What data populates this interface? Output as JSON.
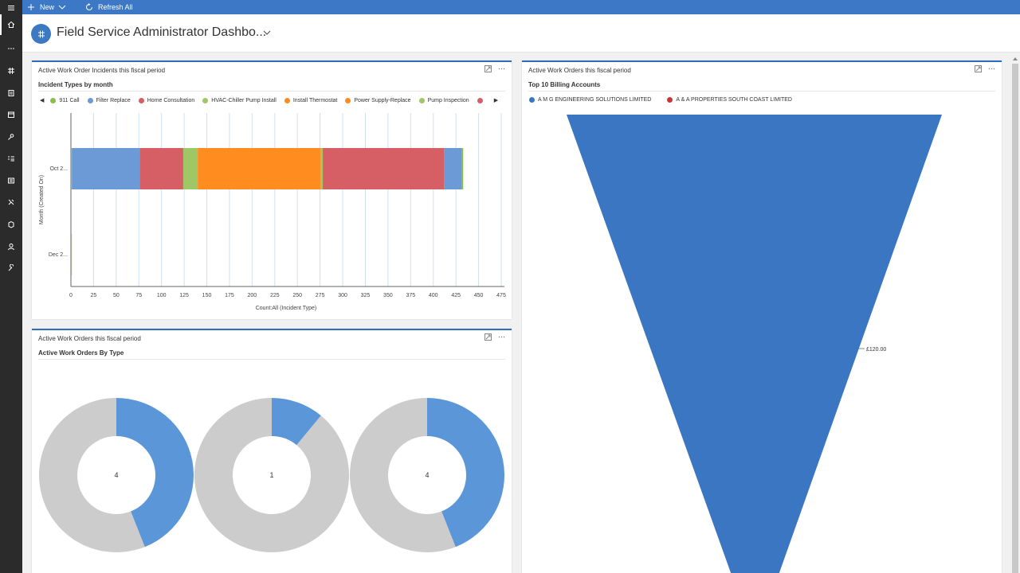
{
  "commandbar": {
    "new_label": "New",
    "refresh_label": "Refresh All"
  },
  "header": {
    "title": "Field Service Administrator Dashbo..."
  },
  "rail": {
    "icons": [
      "hamburger-icon",
      "home-icon",
      "more-icon",
      "dashboard-icon",
      "work-orders-icon",
      "calendar-icon",
      "resources-icon",
      "list-icon",
      "agreements-icon",
      "scheduling-icon",
      "inventory-icon",
      "customers-icon",
      "settings-icon"
    ]
  },
  "panel_incidents": {
    "title": "Active Work Order Incidents this fiscal period",
    "subtitle": "Incident Types by month"
  },
  "panel_billing": {
    "title": "Active Work Orders this fiscal period",
    "subtitle": "Top 10 Billing Accounts"
  },
  "panel_types": {
    "title": "Active Work Orders this fiscal period",
    "subtitle": "Active Work Orders By Type"
  },
  "chart_data": [
    {
      "type": "bar",
      "orientation": "horizontal",
      "stacked": true,
      "categories": [
        "Oct 2...",
        "Dec 2..."
      ],
      "ylabel": "Month (Created On)",
      "xlabel": "Count:All (Incident Type)",
      "xlim": [
        0,
        475
      ],
      "xticks": [
        0,
        25,
        50,
        75,
        100,
        125,
        150,
        175,
        200,
        225,
        250,
        275,
        300,
        325,
        350,
        375,
        400,
        425,
        450,
        475
      ],
      "grid": true,
      "legend_position": "top",
      "series": [
        {
          "name": "911 Call",
          "color": "#8cbd48",
          "values": [
            1,
            1
          ]
        },
        {
          "name": "Filter Replace",
          "color": "#6b9ad6",
          "values": [
            75,
            0
          ]
        },
        {
          "name": "Home Consultation",
          "color": "#d65f65",
          "values": [
            48,
            0
          ]
        },
        {
          "name": "HVAC-Chiller Pump Install",
          "color": "#9fc765",
          "values": [
            16,
            0
          ]
        },
        {
          "name": "Install Thermostat",
          "color": "#ff8c1f",
          "values": [
            136,
            0
          ]
        },
        {
          "name": "Power Supply-Replace",
          "color": "#ff8c1f",
          "values": [
            0,
            0
          ]
        },
        {
          "name": "Pump Inspection",
          "color": "#9fc765",
          "values": [
            2,
            0
          ]
        },
        {
          "name": "",
          "color": "#d65f65",
          "values": [
            134,
            0
          ]
        },
        {
          "name": "",
          "color": "#6b9ad6",
          "values": [
            19,
            0
          ]
        },
        {
          "name": "",
          "color": "#8cbd48",
          "values": [
            2,
            0
          ]
        }
      ]
    },
    {
      "type": "funnel",
      "series": [
        {
          "name": "A M G ENGINEERING SOLUTIONS LIMITED",
          "color": "#3a76c2"
        },
        {
          "name": "A & A PROPERTIES SOUTH COAST LIMITED",
          "color": "#c9343b"
        }
      ],
      "data_label": "£120.00"
    },
    {
      "type": "pie",
      "donut": true,
      "rings": [
        {
          "center_label": "4",
          "slices": [
            {
              "value": 0.44,
              "color": "#5b97d8"
            },
            {
              "value": 0.56,
              "color": "#cccccc"
            }
          ]
        },
        {
          "center_label": "1",
          "slices": [
            {
              "value": 0.11,
              "color": "#5b97d8"
            },
            {
              "value": 0.89,
              "color": "#cccccc"
            }
          ]
        },
        {
          "center_label": "4",
          "slices": [
            {
              "value": 0.44,
              "color": "#5b97d8"
            },
            {
              "value": 0.56,
              "color": "#cccccc"
            }
          ]
        }
      ]
    }
  ]
}
